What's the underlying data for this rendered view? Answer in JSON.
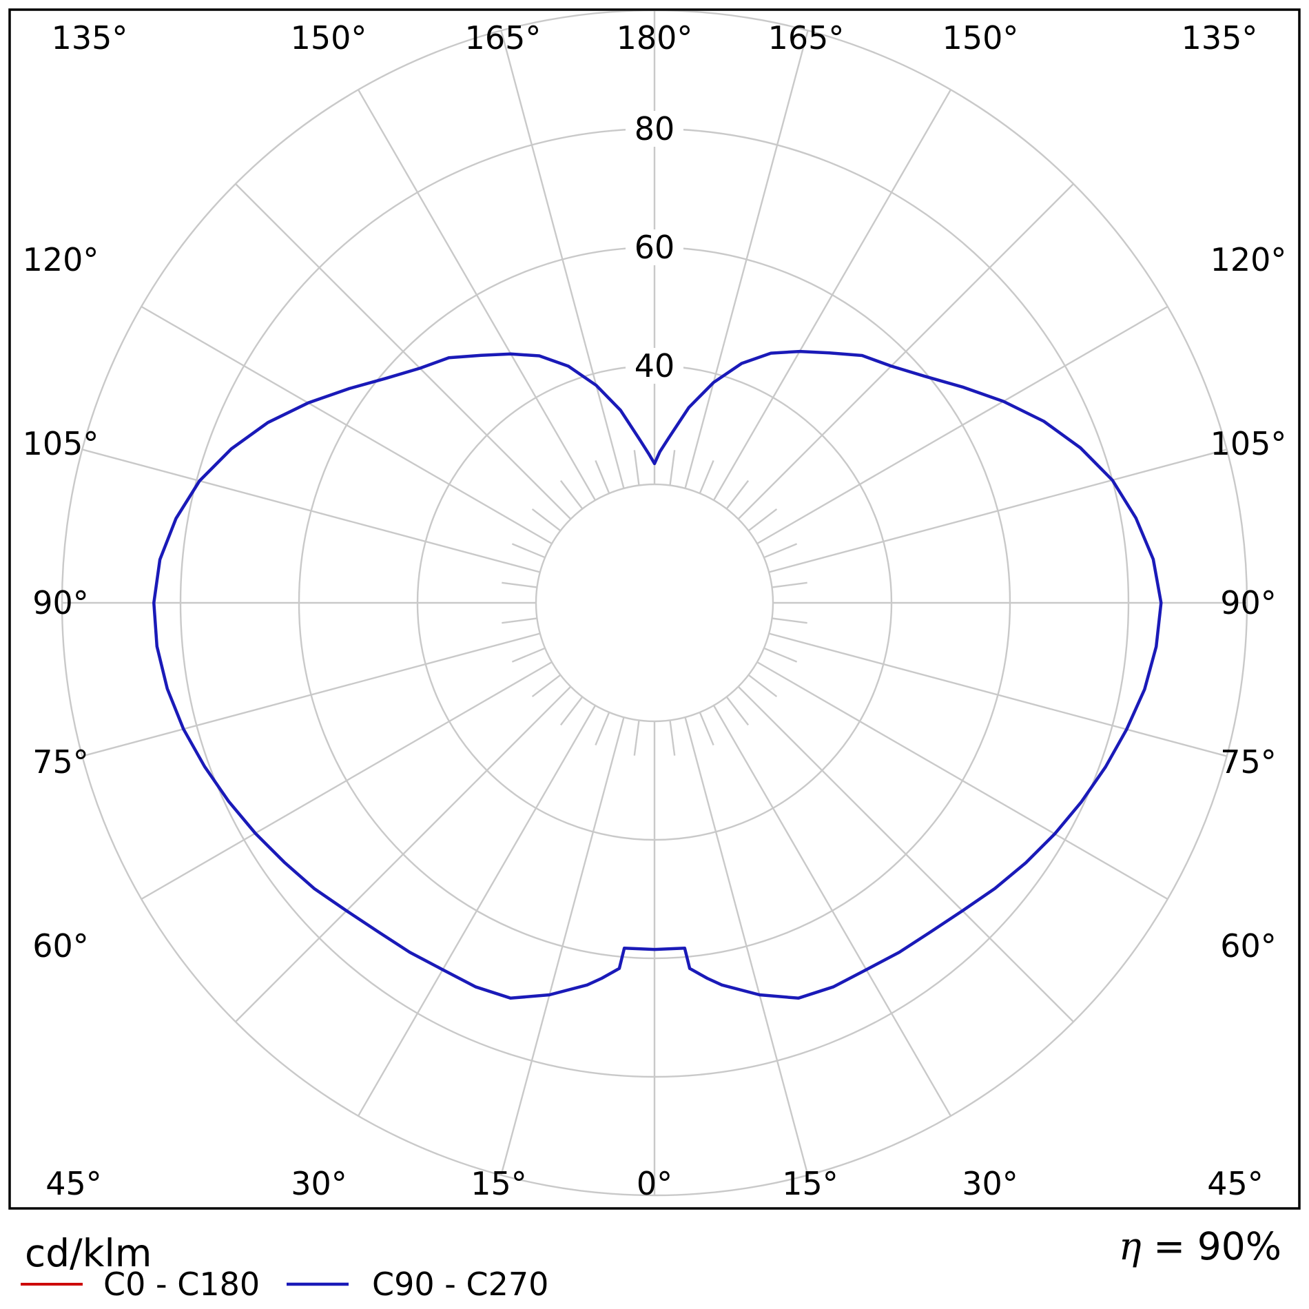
{
  "chart_data": {
    "type": "polar",
    "units": "cd/klm",
    "efficiency_percent": 90,
    "radial_axis": {
      "ticks": [
        20,
        40,
        60,
        80,
        100
      ],
      "labeled_ticks": [
        "40",
        "60",
        "80"
      ],
      "max": 100
    },
    "angle_axis": {
      "step_deg": 15,
      "labels": [
        "0°",
        "15°",
        "30°",
        "45°",
        "60°",
        "75°",
        "90°",
        "105°",
        "120°",
        "135°",
        "150°",
        "165°",
        "180°"
      ]
    },
    "legend": [
      {
        "label": "C0 - C180",
        "color": "#cc0000"
      },
      {
        "label": "C90 - C270",
        "color": "#1a1ab8"
      }
    ],
    "series": [
      {
        "name": "C90 - C270",
        "color": "#1a1ab8",
        "gamma_deg": [
          0,
          5,
          5.5,
          8,
          10,
          15,
          20,
          25,
          30,
          35,
          40,
          45,
          50,
          55,
          60,
          65,
          70,
          75,
          80,
          85,
          90,
          95,
          100,
          105,
          110,
          115,
          120,
          125,
          130,
          135,
          140,
          145,
          150,
          155,
          160,
          165,
          170,
          175,
          178,
          180
        ],
        "right_values": [
          58.5,
          58.5,
          62,
          64,
          65.5,
          68.5,
          71,
          71.5,
          71.5,
          72,
          72.5,
          73.5,
          75,
          76.5,
          78,
          79.5,
          81,
          82.5,
          84,
          85,
          85.5,
          84.5,
          82.5,
          80,
          76.5,
          72.5,
          68,
          63.5,
          59.5,
          56.5,
          54.5,
          51.5,
          49,
          46.5,
          43,
          38.5,
          33.5,
          28,
          25.5,
          23.5
        ],
        "left_values": [
          58.5,
          58.5,
          62,
          64,
          65.5,
          68.5,
          71,
          71.5,
          71.5,
          72,
          72.5,
          73.5,
          75,
          76.3,
          77.8,
          79.3,
          80.8,
          82.3,
          83.5,
          84.3,
          84.5,
          83.8,
          82,
          79.5,
          76,
          72,
          67.5,
          63,
          59,
          56,
          54,
          51,
          48.5,
          46,
          42.5,
          38,
          33,
          27.5,
          25,
          23.5
        ]
      }
    ]
  },
  "footer": {
    "eta_symbol": "η",
    "eta_rest": " = 90%"
  }
}
